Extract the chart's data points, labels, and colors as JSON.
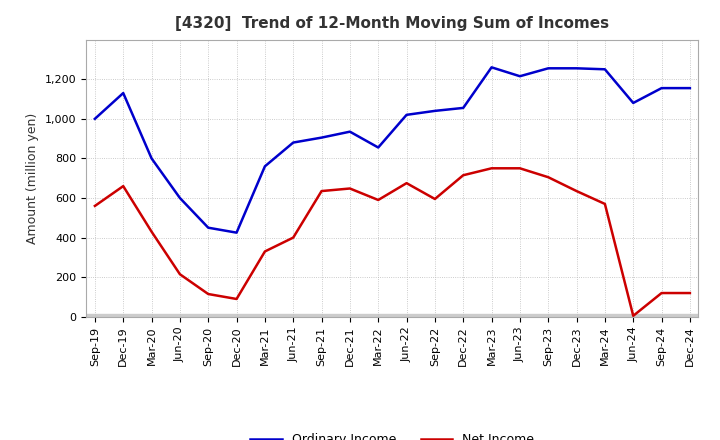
{
  "title": "[4320]  Trend of 12-Month Moving Sum of Incomes",
  "ylabel": "Amount (million yen)",
  "x_labels": [
    "Sep-19",
    "Dec-19",
    "Mar-20",
    "Jun-20",
    "Sep-20",
    "Dec-20",
    "Mar-21",
    "Jun-21",
    "Sep-21",
    "Dec-21",
    "Mar-22",
    "Jun-22",
    "Sep-22",
    "Dec-22",
    "Mar-23",
    "Jun-23",
    "Sep-23",
    "Dec-23",
    "Mar-24",
    "Jun-24",
    "Sep-24",
    "Dec-24"
  ],
  "ordinary_income": [
    1000,
    1130,
    800,
    600,
    450,
    425,
    760,
    880,
    905,
    935,
    855,
    1020,
    1040,
    1055,
    1260,
    1215,
    1255,
    1255,
    1250,
    1080,
    1155,
    1155
  ],
  "net_income": [
    560,
    660,
    430,
    215,
    115,
    90,
    330,
    400,
    635,
    648,
    590,
    675,
    595,
    715,
    750,
    750,
    705,
    635,
    570,
    5,
    120,
    120
  ],
  "ylim": [
    0,
    1400
  ],
  "yticks": [
    0,
    200,
    400,
    600,
    800,
    1000,
    1200
  ],
  "ytick_labels": [
    "0",
    "200",
    "400",
    "600",
    "800",
    "1,000",
    "1,200"
  ],
  "ordinary_color": "#0000CC",
  "net_color": "#CC0000",
  "background_color": "#FFFFFF",
  "plot_bg_color": "#FFFFFF",
  "grid_color": "#BBBBBB",
  "line_width": 1.8,
  "title_fontsize": 11,
  "axis_label_fontsize": 9,
  "tick_fontsize": 8,
  "legend_fontsize": 9
}
